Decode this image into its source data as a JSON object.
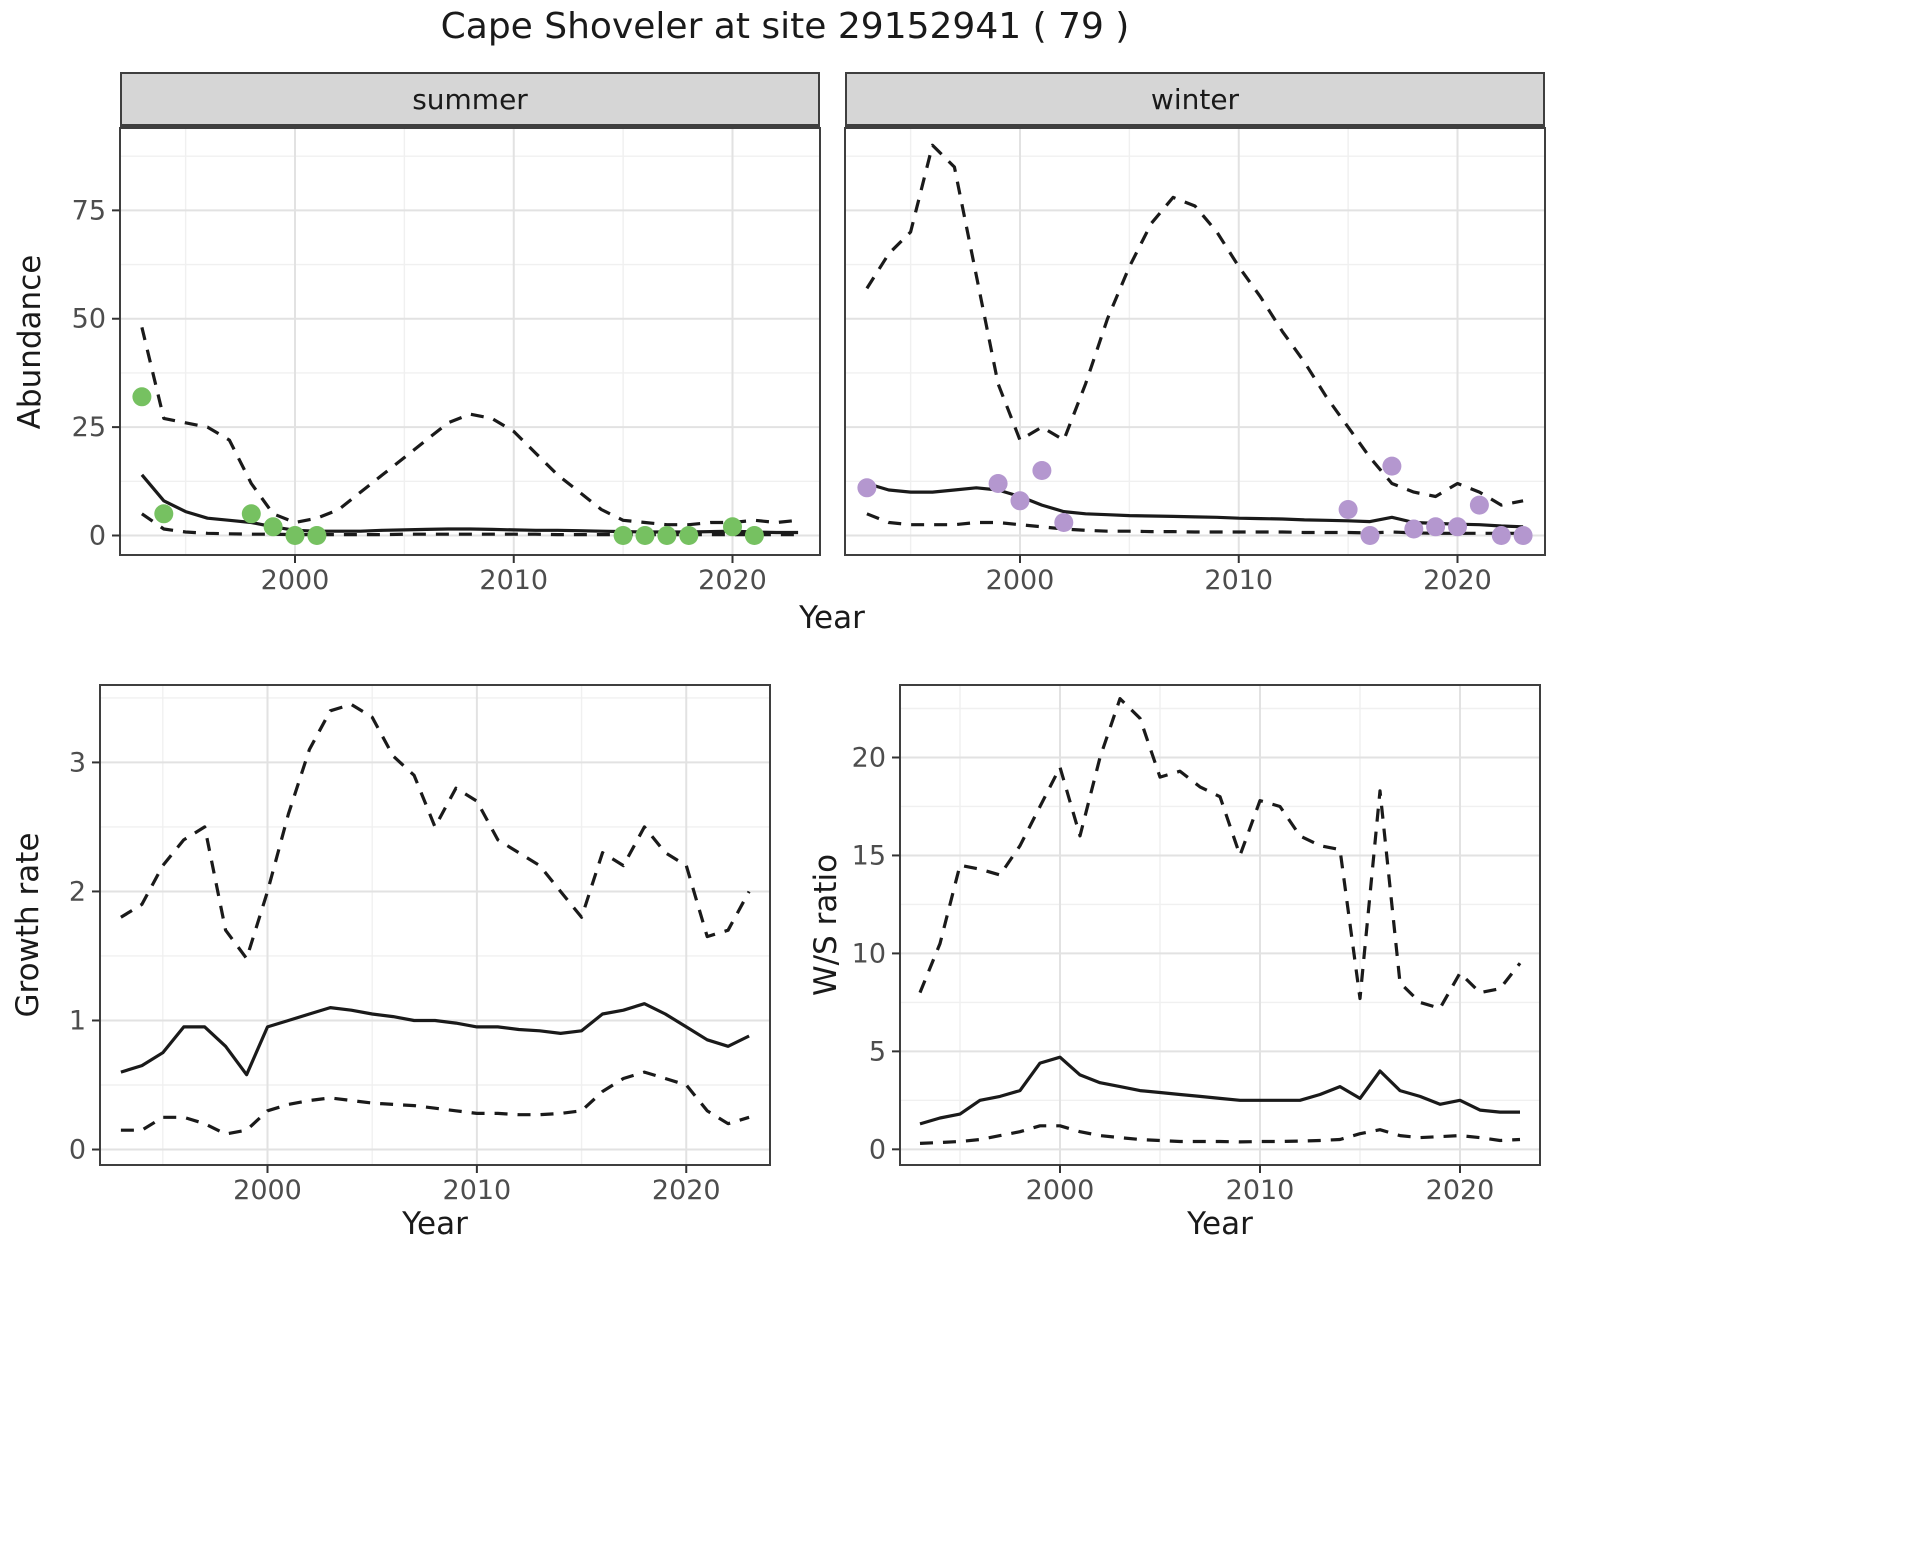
{
  "title": "Cape Shoveler at site 29152941 ( 79 )",
  "colors": {
    "line": "#1a1a1a",
    "grid_major": "#e2e2e2",
    "grid_minor": "#f0f0f0",
    "panel_border": "#3f3f3f",
    "strip_bg": "#d6d6d6",
    "axis_text": "#4d4d4d",
    "summer_dot": "#76c161",
    "winter_dot": "#b497cf"
  },
  "chart_data": [
    {
      "type": "line",
      "facet": "summer",
      "xlabel": "Year",
      "ylabel": "Abundance",
      "xlim": [
        1992,
        2024
      ],
      "ylim": [
        -4.5,
        94
      ],
      "xticks": [
        2000,
        2010,
        2020
      ],
      "yticks": [
        0,
        25,
        50,
        75
      ],
      "show_y_tick_labels": true,
      "grid": true,
      "x": [
        1993,
        1994,
        1995,
        1996,
        1997,
        1998,
        1999,
        2000,
        2001,
        2002,
        2003,
        2004,
        2005,
        2006,
        2007,
        2008,
        2009,
        2010,
        2011,
        2012,
        2013,
        2014,
        2015,
        2016,
        2017,
        2018,
        2019,
        2020,
        2021,
        2022,
        2023
      ],
      "series": [
        {
          "name": "mean",
          "style": "solid",
          "values": [
            14,
            8,
            5.5,
            4,
            3.5,
            3,
            2,
            1.2,
            1,
            1,
            1,
            1.2,
            1.3,
            1.4,
            1.5,
            1.5,
            1.4,
            1.3,
            1.2,
            1.2,
            1.1,
            1,
            0.9,
            0.8,
            0.8,
            0.8,
            0.9,
            1,
            0.8,
            0.7,
            0.7
          ]
        },
        {
          "name": "upper-ci",
          "style": "dashed",
          "values": [
            48,
            27,
            26,
            25,
            22,
            12,
            5,
            3,
            4,
            6,
            10,
            14,
            18,
            22,
            26,
            28,
            27,
            24,
            19,
            14,
            10,
            6,
            3.5,
            3,
            2.5,
            2.5,
            3,
            3,
            3.5,
            3,
            3.5
          ]
        },
        {
          "name": "lower-ci",
          "style": "dashed",
          "values": [
            5,
            1.5,
            0.8,
            0.5,
            0.4,
            0.3,
            0.3,
            0.2,
            0.2,
            0.2,
            0.2,
            0.2,
            0.3,
            0.3,
            0.3,
            0.3,
            0.3,
            0.3,
            0.3,
            0.2,
            0.2,
            0.2,
            0.2,
            0.2,
            0.2,
            0.2,
            0.2,
            0.2,
            0.2,
            0.2,
            0.2
          ]
        }
      ],
      "points": {
        "name": "summer-observations",
        "color": "#76c161",
        "xy": [
          [
            1993,
            32
          ],
          [
            1994,
            5
          ],
          [
            1998,
            5
          ],
          [
            1999,
            2
          ],
          [
            2000,
            0
          ],
          [
            2001,
            0
          ],
          [
            2015,
            0
          ],
          [
            2016,
            0
          ],
          [
            2017,
            0
          ],
          [
            2018,
            0
          ],
          [
            2020,
            2
          ],
          [
            2021,
            0
          ]
        ]
      }
    },
    {
      "type": "line",
      "facet": "winter",
      "xlabel": "Year",
      "ylabel": "Abundance",
      "xlim": [
        1992,
        2024
      ],
      "ylim": [
        -4.5,
        94
      ],
      "xticks": [
        2000,
        2010,
        2020
      ],
      "yticks": [
        0,
        25,
        50,
        75
      ],
      "show_y_tick_labels": false,
      "grid": true,
      "x": [
        1993,
        1994,
        1995,
        1996,
        1997,
        1998,
        1999,
        2000,
        2001,
        2002,
        2003,
        2004,
        2005,
        2006,
        2007,
        2008,
        2009,
        2010,
        2011,
        2012,
        2013,
        2014,
        2015,
        2016,
        2017,
        2018,
        2019,
        2020,
        2021,
        2022,
        2023
      ],
      "series": [
        {
          "name": "mean",
          "style": "solid",
          "values": [
            12,
            10.5,
            10,
            10,
            10.5,
            11,
            10.5,
            9,
            7,
            5.5,
            5,
            4.8,
            4.6,
            4.5,
            4.4,
            4.3,
            4.2,
            4,
            3.9,
            3.8,
            3.6,
            3.5,
            3.4,
            3.2,
            4.2,
            3,
            2.8,
            2.6,
            2.5,
            2.2,
            2
          ]
        },
        {
          "name": "upper-ci",
          "style": "dashed",
          "values": [
            57,
            65,
            70,
            90,
            85,
            60,
            35,
            22,
            25,
            22,
            35,
            50,
            62,
            72,
            78,
            76,
            70,
            62,
            55,
            47,
            40,
            32,
            25,
            18,
            12,
            10,
            9,
            12,
            10,
            7,
            8
          ]
        },
        {
          "name": "lower-ci",
          "style": "dashed",
          "values": [
            5,
            3,
            2.5,
            2.5,
            2.5,
            3,
            3,
            2.5,
            2,
            1.5,
            1.2,
            1,
            1,
            0.9,
            0.9,
            0.8,
            0.8,
            0.8,
            0.8,
            0.8,
            0.7,
            0.7,
            0.7,
            0.6,
            0.8,
            0.6,
            0.5,
            0.5,
            0.5,
            0.5,
            0.5
          ]
        }
      ],
      "points": {
        "name": "winter-observations",
        "color": "#b497cf",
        "xy": [
          [
            1993,
            11
          ],
          [
            1999,
            12
          ],
          [
            2000,
            8
          ],
          [
            2001,
            15
          ],
          [
            2002,
            3
          ],
          [
            2015,
            6
          ],
          [
            2016,
            0
          ],
          [
            2017,
            16
          ],
          [
            2018,
            1.5
          ],
          [
            2019,
            2
          ],
          [
            2020,
            2
          ],
          [
            2021,
            7
          ],
          [
            2022,
            0
          ],
          [
            2023,
            0
          ]
        ]
      }
    },
    {
      "type": "line",
      "xlabel": "Year",
      "ylabel": "Growth rate",
      "xlim": [
        1992,
        2024
      ],
      "ylim": [
        -0.12,
        3.6
      ],
      "xticks": [
        2000,
        2010,
        2020
      ],
      "yticks": [
        0,
        1,
        2,
        3
      ],
      "show_y_tick_labels": true,
      "grid": true,
      "x": [
        1993,
        1994,
        1995,
        1996,
        1997,
        1998,
        1999,
        2000,
        2001,
        2002,
        2003,
        2004,
        2005,
        2006,
        2007,
        2008,
        2009,
        2010,
        2011,
        2012,
        2013,
        2014,
        2015,
        2016,
        2017,
        2018,
        2019,
        2020,
        2021,
        2022,
        2023
      ],
      "series": [
        {
          "name": "mean",
          "style": "solid",
          "values": [
            0.6,
            0.65,
            0.75,
            0.95,
            0.95,
            0.8,
            0.58,
            0.95,
            1.0,
            1.05,
            1.1,
            1.08,
            1.05,
            1.03,
            1.0,
            1.0,
            0.98,
            0.95,
            0.95,
            0.93,
            0.92,
            0.9,
            0.92,
            1.05,
            1.08,
            1.13,
            1.05,
            0.95,
            0.85,
            0.8,
            0.88
          ]
        },
        {
          "name": "upper-ci",
          "style": "dashed",
          "values": [
            1.8,
            1.9,
            2.2,
            2.4,
            2.5,
            1.7,
            1.48,
            2.0,
            2.6,
            3.1,
            3.4,
            3.45,
            3.35,
            3.05,
            2.9,
            2.5,
            2.8,
            2.7,
            2.4,
            2.3,
            2.2,
            2.0,
            1.8,
            2.3,
            2.2,
            2.5,
            2.3,
            2.2,
            1.65,
            1.7,
            2.0
          ]
        },
        {
          "name": "lower-ci",
          "style": "dashed",
          "values": [
            0.15,
            0.15,
            0.25,
            0.25,
            0.2,
            0.12,
            0.15,
            0.3,
            0.35,
            0.38,
            0.4,
            0.38,
            0.36,
            0.35,
            0.34,
            0.32,
            0.3,
            0.28,
            0.28,
            0.27,
            0.27,
            0.28,
            0.3,
            0.45,
            0.55,
            0.6,
            0.55,
            0.5,
            0.3,
            0.2,
            0.25
          ]
        }
      ]
    },
    {
      "type": "line",
      "xlabel": "Year",
      "ylabel": "W/S ratio",
      "xlim": [
        1992,
        2024
      ],
      "ylim": [
        -0.8,
        23.7
      ],
      "xticks": [
        2000,
        2010,
        2020
      ],
      "yticks": [
        0,
        5,
        10,
        15,
        20
      ],
      "show_y_tick_labels": true,
      "grid": true,
      "x": [
        1993,
        1994,
        1995,
        1996,
        1997,
        1998,
        1999,
        2000,
        2001,
        2002,
        2003,
        2004,
        2005,
        2006,
        2007,
        2008,
        2009,
        2010,
        2011,
        2012,
        2013,
        2014,
        2015,
        2016,
        2017,
        2018,
        2019,
        2020,
        2021,
        2022,
        2023
      ],
      "series": [
        {
          "name": "mean",
          "style": "solid",
          "values": [
            1.3,
            1.6,
            1.8,
            2.5,
            2.7,
            3.0,
            4.4,
            4.7,
            3.8,
            3.4,
            3.2,
            3.0,
            2.9,
            2.8,
            2.7,
            2.6,
            2.5,
            2.5,
            2.5,
            2.5,
            2.8,
            3.2,
            2.6,
            4.0,
            3.0,
            2.7,
            2.3,
            2.5,
            2.0,
            1.9,
            1.9
          ]
        },
        {
          "name": "upper-ci",
          "style": "dashed",
          "values": [
            8,
            10.5,
            14.5,
            14.3,
            14,
            15.5,
            17.5,
            19.5,
            16,
            20,
            23,
            22,
            19,
            19.3,
            18.5,
            18,
            15,
            17.8,
            17.5,
            16,
            15.5,
            15.3,
            7.7,
            18.3,
            8.5,
            7.5,
            7.2,
            9,
            8,
            8.2,
            9.5
          ]
        },
        {
          "name": "lower-ci",
          "style": "dashed",
          "values": [
            0.3,
            0.35,
            0.4,
            0.5,
            0.7,
            0.9,
            1.2,
            1.2,
            0.9,
            0.7,
            0.6,
            0.5,
            0.45,
            0.4,
            0.4,
            0.4,
            0.38,
            0.4,
            0.4,
            0.42,
            0.45,
            0.5,
            0.8,
            1.0,
            0.7,
            0.6,
            0.65,
            0.7,
            0.6,
            0.45,
            0.5
          ]
        }
      ]
    }
  ]
}
